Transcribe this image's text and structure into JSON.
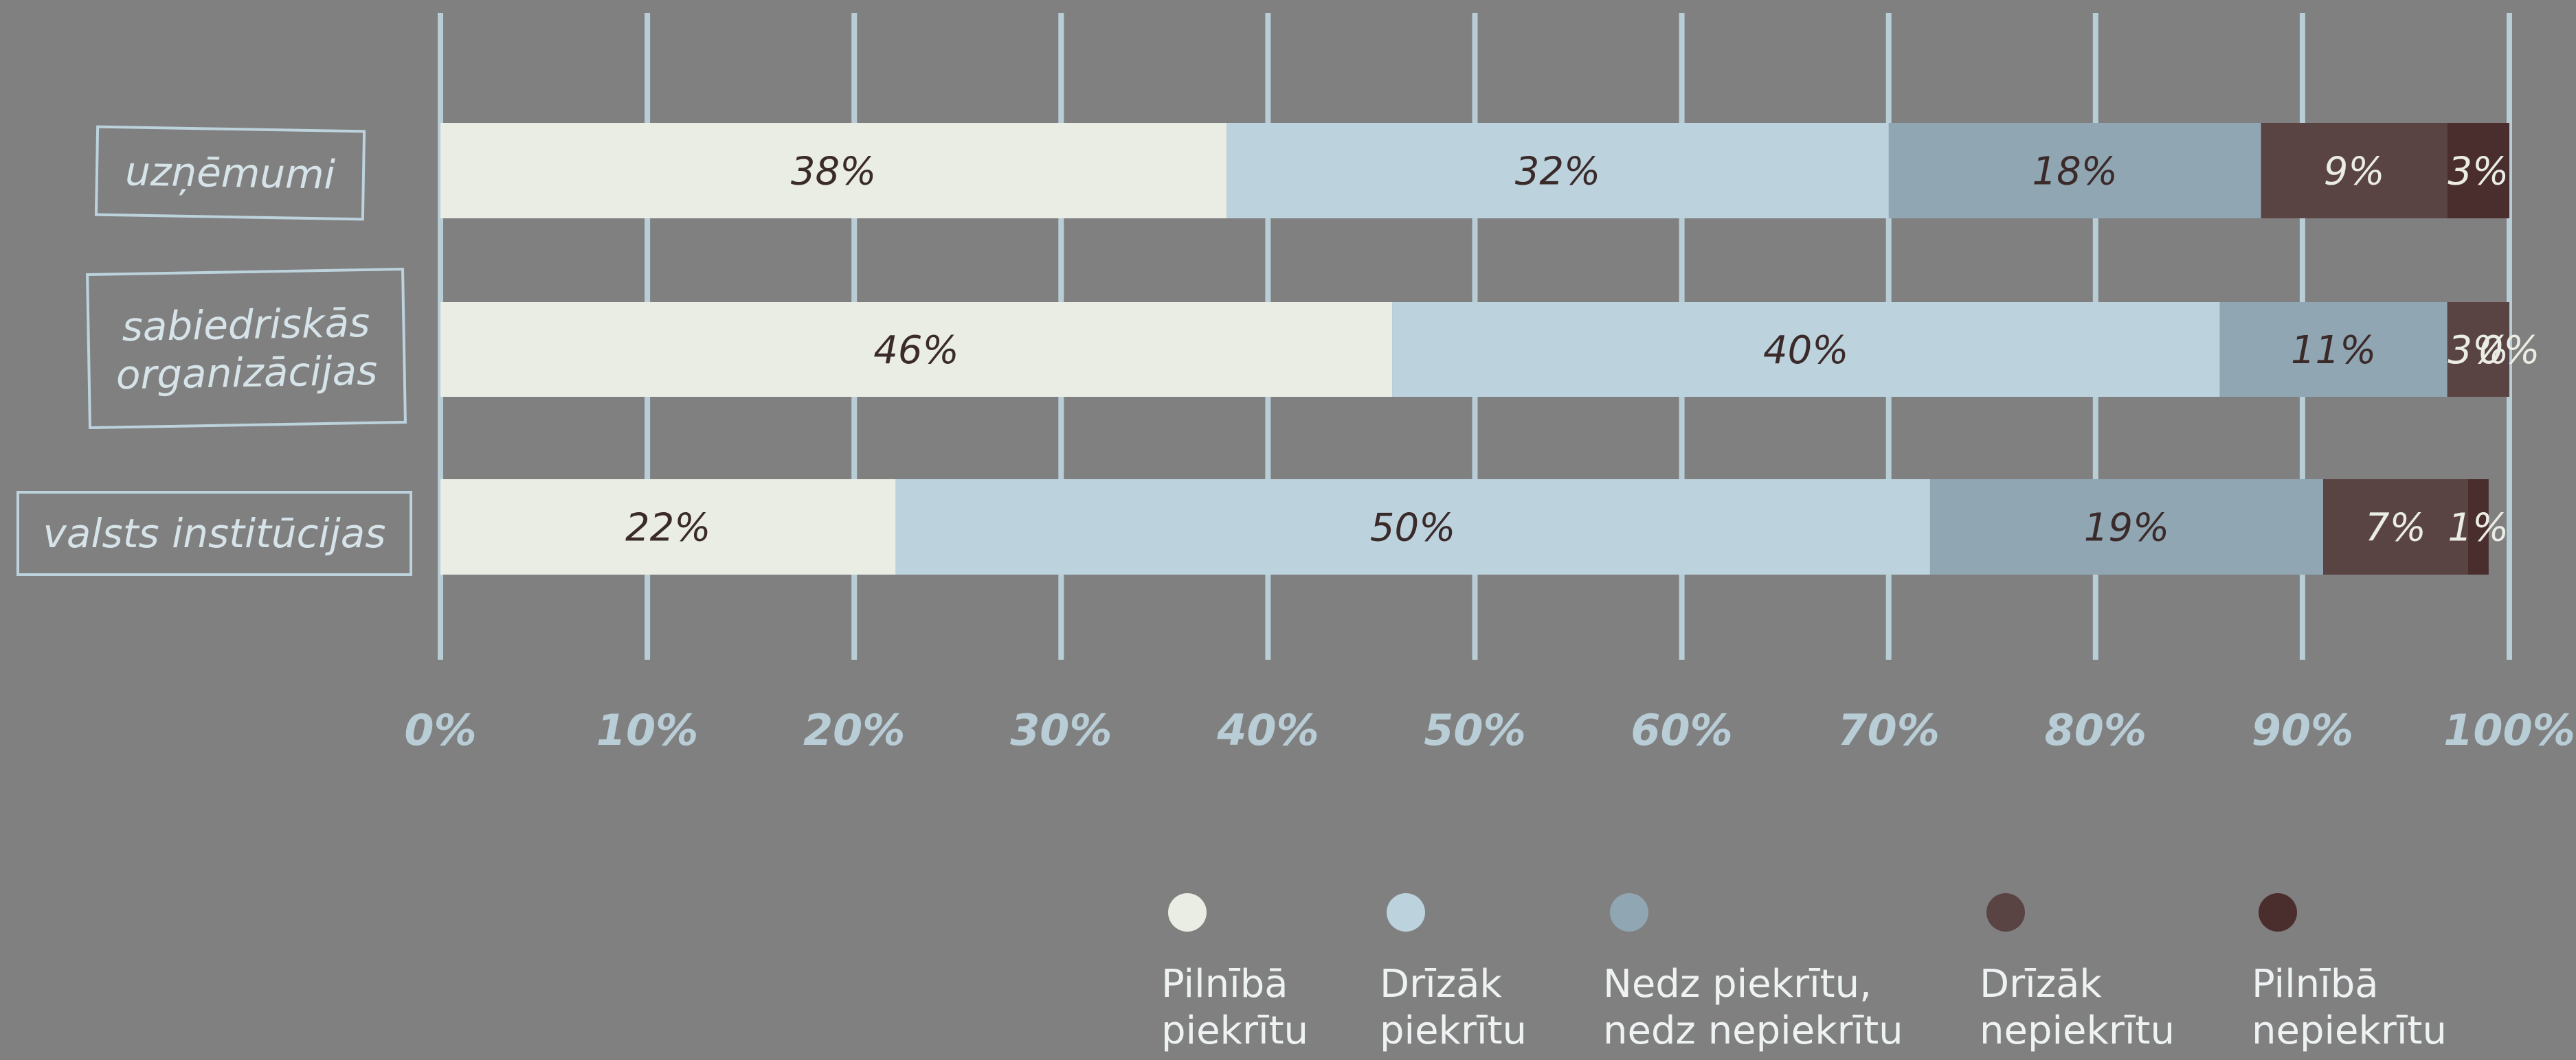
{
  "chart_data": {
    "type": "stacked_bar_horizontal",
    "categories": [
      "uzņēmumi",
      "sabiedriskās organizācijas",
      "valsts institūcijas"
    ],
    "series": [
      {
        "name": "Pilnībā piekrītu",
        "color": "#eaede4",
        "values": [
          38,
          46,
          22
        ],
        "value_labels": [
          "38%",
          "46%",
          "22%"
        ]
      },
      {
        "name": "Drīzāk piekrītu",
        "color": "#bcd3dd",
        "values": [
          32,
          40,
          50
        ],
        "value_labels": [
          "32%",
          "40%",
          "50%"
        ]
      },
      {
        "name": "Nedz piekrītu, nedz nepiekrītu",
        "color": "#90a6b3",
        "values": [
          18,
          11,
          19
        ],
        "value_labels": [
          "18%",
          "11%",
          "19%"
        ]
      },
      {
        "name": "Drīzāk nepiekrītu",
        "color": "#5a4343",
        "values": [
          9,
          3,
          7
        ],
        "value_labels": [
          "9%",
          "3%",
          "7%"
        ]
      },
      {
        "name": "Pilnībā nepiekrītu",
        "color": "#4a2d2d",
        "values": [
          3,
          0,
          1
        ],
        "value_labels": [
          "3%",
          "0%",
          "1%"
        ]
      }
    ],
    "xlim": [
      0,
      100
    ],
    "xticks": [
      {
        "value": 0,
        "label": "0%"
      },
      {
        "value": 10,
        "label": "10%"
      },
      {
        "value": 20,
        "label": "20%"
      },
      {
        "value": 30,
        "label": "30%"
      },
      {
        "value": 40,
        "label": "40%"
      },
      {
        "value": 50,
        "label": "50%"
      },
      {
        "value": 60,
        "label": "60%"
      },
      {
        "value": 70,
        "label": "70%"
      },
      {
        "value": 80,
        "label": "80%"
      },
      {
        "value": 90,
        "label": "90%"
      },
      {
        "value": 100,
        "label": "100%"
      }
    ],
    "grid": true,
    "legend": "bottom"
  }
}
